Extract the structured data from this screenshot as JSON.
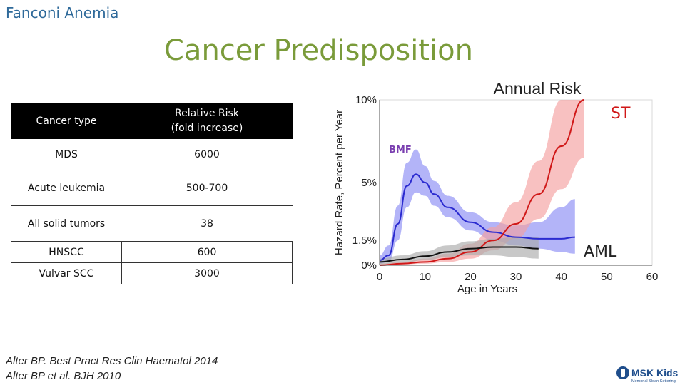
{
  "header": {
    "section": "Fanconi Anemia",
    "title": "Cancer Predisposition"
  },
  "table": {
    "headers": [
      "Cancer type",
      "Relative Risk\n(fold increase)"
    ],
    "rows": [
      {
        "type": "MDS",
        "risk": "6000"
      },
      {
        "type": "Acute leukemia",
        "risk": "500-700"
      },
      {
        "type": "All solid tumors",
        "risk": "38"
      },
      {
        "type": "HNSCC",
        "risk": "600"
      },
      {
        "type": "Vulvar SCC",
        "risk": "3000"
      }
    ]
  },
  "citations": [
    "Alter BP. Best Pract Res Clin Haematol 2014",
    "Alter BP et al. BJH 2010"
  ],
  "logo": {
    "text": "MSK Kids",
    "subtext": "Memorial Sloan Kettering"
  },
  "chart_data": {
    "type": "line",
    "title": "Annual Risk",
    "xlabel": "Age in Years",
    "ylabel": "Hazard Rate, Percent per Year",
    "x_ticks": [
      0,
      10,
      20,
      30,
      40,
      50,
      60
    ],
    "y_ticks": [
      {
        "value": 0,
        "label": "0%"
      },
      {
        "value": 1.5,
        "label": "1.5%"
      },
      {
        "value": 5,
        "label": "5%"
      },
      {
        "value": 10,
        "label": "10%"
      }
    ],
    "xlim": [
      0,
      60
    ],
    "ylim": [
      0,
      10
    ],
    "series": [
      {
        "name": "BMF",
        "color": "#2b2bd0",
        "band_color": "#8a8cf5",
        "x": [
          0,
          2,
          4,
          6,
          8,
          10,
          12,
          15,
          20,
          25,
          30,
          35,
          40,
          43
        ],
        "y": [
          0.3,
          0.6,
          2.5,
          4.8,
          5.5,
          5.0,
          4.3,
          3.5,
          2.6,
          2.0,
          1.7,
          1.6,
          1.6,
          1.7
        ],
        "lower": [
          0.1,
          0.2,
          1.5,
          3.5,
          4.4,
          4.2,
          3.6,
          2.9,
          2.1,
          1.5,
          1.2,
          1.0,
          0.8,
          0.7
        ],
        "upper": [
          0.6,
          1.2,
          3.6,
          6.2,
          7.0,
          6.0,
          5.1,
          4.2,
          3.2,
          2.6,
          2.4,
          2.6,
          3.5,
          4.0
        ]
      },
      {
        "name": "ST",
        "color": "#d01818",
        "band_color": "#f5a0a0",
        "x": [
          0,
          5,
          10,
          15,
          20,
          25,
          30,
          35,
          40,
          45
        ],
        "y": [
          0.0,
          0.1,
          0.2,
          0.4,
          0.8,
          1.5,
          2.5,
          4.3,
          7.2,
          10.0
        ],
        "lower": [
          0.0,
          0.05,
          0.1,
          0.2,
          0.4,
          0.9,
          1.6,
          2.8,
          4.6,
          6.5
        ],
        "upper": [
          0.1,
          0.2,
          0.4,
          0.7,
          1.3,
          2.3,
          3.8,
          6.3,
          10.0,
          10.0
        ]
      },
      {
        "name": "AML",
        "color": "#111111",
        "band_color": "#aaaaaa",
        "x": [
          0,
          5,
          10,
          15,
          20,
          25,
          30,
          35
        ],
        "y": [
          0.2,
          0.35,
          0.55,
          0.8,
          1.0,
          1.1,
          1.1,
          1.0
        ],
        "lower": [
          0.05,
          0.15,
          0.3,
          0.5,
          0.6,
          0.6,
          0.5,
          0.4
        ],
        "upper": [
          0.4,
          0.6,
          0.85,
          1.2,
          1.45,
          1.6,
          1.7,
          1.7
        ]
      }
    ],
    "annotations": [
      {
        "text": "BMF",
        "color": "#7a3fb0"
      },
      {
        "text": "ST",
        "color": "#d01818"
      },
      {
        "text": "AML",
        "color": "#222222"
      }
    ]
  }
}
